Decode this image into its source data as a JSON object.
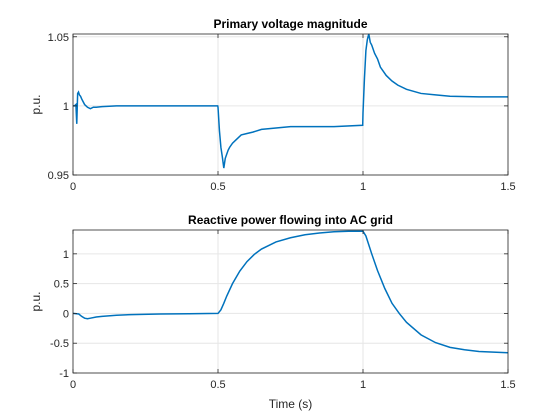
{
  "chart_data": [
    {
      "type": "line",
      "title": "Primary voltage magnitude",
      "xlabel": "",
      "ylabel": "p.u.",
      "xlim": [
        0,
        1.5
      ],
      "ylim": [
        0.95,
        1.052
      ],
      "xticks": [
        0,
        0.5,
        1,
        1.5
      ],
      "xtick_labels": [
        "0",
        "0.5",
        "1",
        "1.5"
      ],
      "yticks": [
        0.95,
        1,
        1.05
      ],
      "ytick_labels": [
        "0.95",
        "1",
        "1.05"
      ],
      "grid": true,
      "series": [
        {
          "color": "#0072bd",
          "x": [
            0,
            0.005,
            0.01,
            0.013,
            0.016,
            0.019,
            0.022,
            0.026,
            0.03,
            0.035,
            0.04,
            0.05,
            0.06,
            0.07,
            0.08,
            0.1,
            0.15,
            0.2,
            0.3,
            0.4,
            0.499,
            0.5,
            0.505,
            0.51,
            0.515,
            0.52,
            0.525,
            0.53,
            0.535,
            0.54,
            0.55,
            0.56,
            0.57,
            0.58,
            0.6,
            0.62,
            0.65,
            0.7,
            0.75,
            0.8,
            0.9,
            0.999,
            1.0,
            1.005,
            1.01,
            1.015,
            1.02,
            1.025,
            1.03,
            1.04,
            1.05,
            1.06,
            1.07,
            1.08,
            1.1,
            1.12,
            1.15,
            1.2,
            1.25,
            1.3,
            1.4,
            1.5
          ],
          "y": [
            1.0,
            1.0,
            1.001,
            0.987,
            1.009,
            1.01,
            1.008,
            1.007,
            1.005,
            1.003,
            1.001,
            0.999,
            0.998,
            0.999,
            0.999,
            0.9995,
            1.0,
            1.0,
            1.0,
            1.0,
            1.0,
            0.999,
            0.982,
            0.97,
            0.963,
            0.955,
            0.962,
            0.965,
            0.968,
            0.97,
            0.973,
            0.975,
            0.977,
            0.979,
            0.98,
            0.981,
            0.983,
            0.984,
            0.985,
            0.985,
            0.985,
            0.986,
            0.995,
            1.02,
            1.04,
            1.048,
            1.052,
            1.046,
            1.044,
            1.038,
            1.034,
            1.028,
            1.025,
            1.022,
            1.018,
            1.015,
            1.012,
            1.009,
            1.008,
            1.007,
            1.0065,
            1.0065
          ]
        }
      ]
    },
    {
      "type": "line",
      "title": "Reactive power flowing into AC grid",
      "xlabel": "Time (s)",
      "ylabel": "p.u.",
      "xlim": [
        0,
        1.5
      ],
      "ylim": [
        -1,
        1.4
      ],
      "xticks": [
        0,
        0.5,
        1,
        1.5
      ],
      "xtick_labels": [
        "0",
        "0.5",
        "1",
        "1.5"
      ],
      "yticks": [
        -1,
        -0.5,
        0,
        0.5,
        1
      ],
      "ytick_labels": [
        "-1",
        "-0.5",
        "0",
        "0.5",
        "1"
      ],
      "grid": true,
      "series": [
        {
          "color": "#0072bd",
          "x": [
            0,
            0.02,
            0.03,
            0.04,
            0.05,
            0.06,
            0.08,
            0.1,
            0.15,
            0.2,
            0.3,
            0.4,
            0.5,
            0.51,
            0.52,
            0.53,
            0.55,
            0.575,
            0.6,
            0.625,
            0.65,
            0.7,
            0.75,
            0.8,
            0.85,
            0.9,
            0.95,
            1.0,
            1.01,
            1.02,
            1.03,
            1.05,
            1.075,
            1.1,
            1.125,
            1.15,
            1.2,
            1.25,
            1.3,
            1.35,
            1.4,
            1.45,
            1.5
          ],
          "y": [
            0.0,
            -0.01,
            -0.05,
            -0.08,
            -0.09,
            -0.08,
            -0.06,
            -0.05,
            -0.03,
            -0.02,
            -0.01,
            -0.005,
            0.0,
            0.06,
            0.17,
            0.29,
            0.5,
            0.71,
            0.87,
            0.99,
            1.08,
            1.2,
            1.27,
            1.32,
            1.35,
            1.37,
            1.38,
            1.38,
            1.3,
            1.15,
            1.0,
            0.72,
            0.42,
            0.17,
            0.0,
            -0.15,
            -0.36,
            -0.49,
            -0.57,
            -0.61,
            -0.64,
            -0.65,
            -0.66
          ]
        }
      ]
    }
  ]
}
